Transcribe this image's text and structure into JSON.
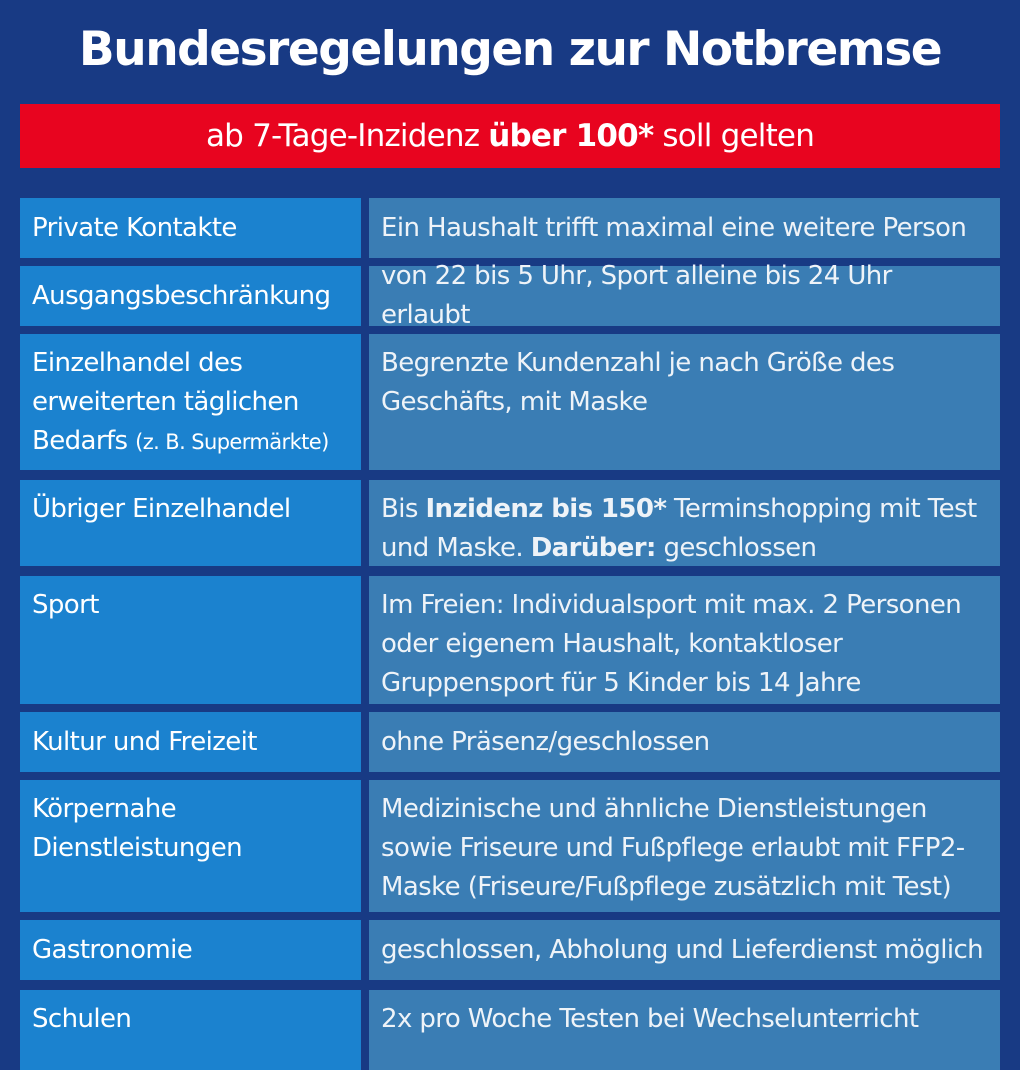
{
  "title": "Bundesregelungen zur Notbremse",
  "banner": {
    "pre": "ab 7-Tage-Inzidenz ",
    "bold": "über 100*",
    "post": " soll gelten"
  },
  "colors": {
    "background": "#183a84",
    "banner": "#e8041f",
    "label_cell": "#1b82cf",
    "value_cell": "#3a7db4"
  },
  "rows": [
    {
      "label": "Private Kontakte",
      "value": "Ein Haushalt trifft maximal eine weitere Person"
    },
    {
      "label": "Ausgangsbeschränkung",
      "value": "von 22 bis 5 Uhr, Sport alleine bis 24 Uhr erlaubt"
    },
    {
      "label": "Einzelhandel des erweiterten täglichen Bedarfs",
      "label_note": "(z. B. Supermärkte)",
      "value": "Begrenzte Kundenzahl je nach Größe des Geschäfts, mit Maske"
    },
    {
      "label": "Übriger Einzelhandel",
      "value_parts": [
        "Bis ",
        "Inzidenz bis 150*",
        " Terminshopping mit Test und Maske. ",
        "Darüber:",
        " geschlossen"
      ]
    },
    {
      "label": "Sport",
      "value": "Im Freien: Individualsport mit max. 2 Personen oder eigenem Haushalt, kontaktloser Gruppensport für 5 Kinder bis 14 Jahre"
    },
    {
      "label": "Kultur und Freizeit",
      "value": "ohne Präsenz/geschlossen"
    },
    {
      "label": "Körpernahe Dienstleistungen",
      "value": "Medizinische und ähnliche Dienstleistungen sowie Friseure und Fußpflege erlaubt mit FFP2-Maske (Friseure/Fußpflege zusätzlich mit Test)"
    },
    {
      "label": "Gastronomie",
      "value": "geschlossen, Abholung und Lieferdienst möglich"
    },
    {
      "label": "Schulen",
      "value": "2x pro Woche Testen bei Wechselunterricht"
    }
  ]
}
